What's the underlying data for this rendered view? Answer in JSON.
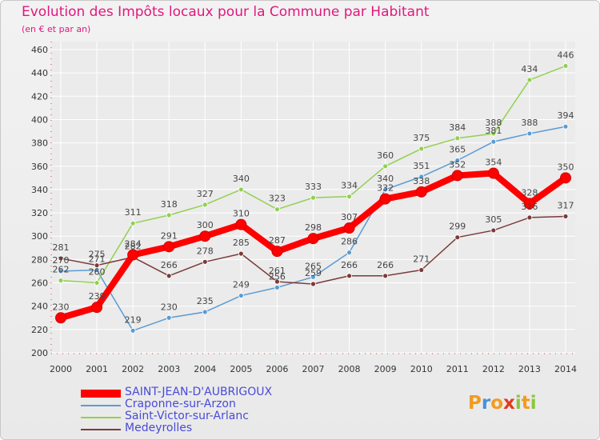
{
  "title": "Evolution des Impôts locaux pour la Commune par Habitant",
  "subtitle": "(en € et par an)",
  "logo": {
    "letters": [
      "P",
      "r",
      "o",
      "x",
      "i",
      "t",
      "i"
    ],
    "colors": [
      "#f29b1e",
      "#4a90d9",
      "#f29b1e",
      "#e03a1e",
      "#8cc63f",
      "#f29b1e",
      "#8cc63f"
    ]
  },
  "chart_data": {
    "type": "line",
    "title": "Evolution des Impôts locaux pour la Commune par Habitant",
    "subtitle": "(en € et par an)",
    "xlabel": "",
    "ylabel": "",
    "ylim": [
      200,
      460
    ],
    "yticks": [
      200,
      220,
      240,
      260,
      280,
      300,
      320,
      340,
      360,
      380,
      400,
      420,
      440,
      460
    ],
    "categories": [
      "2000",
      "2001",
      "2002",
      "2003",
      "2004",
      "2005",
      "2006",
      "2007",
      "2008",
      "2009",
      "2010",
      "2011",
      "2012",
      "2013",
      "2014"
    ],
    "grid": true,
    "legend_position": "bottom-left",
    "series": [
      {
        "name": "SAINT-JEAN-D'AUBRIGOUX",
        "color": "#ff0000",
        "values": [
          230,
          239,
          284,
          291,
          300,
          310,
          287,
          298,
          307,
          332,
          338,
          352,
          354,
          328,
          350
        ]
      },
      {
        "name": "Craponne-sur-Arzon",
        "color": "#5b9bd5",
        "values": [
          270,
          271,
          219,
          230,
          235,
          249,
          256,
          265,
          286,
          340,
          351,
          365,
          381,
          388,
          394
        ]
      },
      {
        "name": "Saint-Victor-sur-Arlanc",
        "color": "#92d050",
        "values": [
          262,
          260,
          311,
          318,
          327,
          340,
          323,
          333,
          334,
          360,
          375,
          384,
          388,
          434,
          446
        ]
      },
      {
        "name": "Medeyrolles",
        "color": "#7b3a3a",
        "values": [
          281,
          275,
          282,
          266,
          278,
          285,
          261,
          259,
          266,
          266,
          271,
          299,
          305,
          316,
          317
        ]
      }
    ]
  }
}
